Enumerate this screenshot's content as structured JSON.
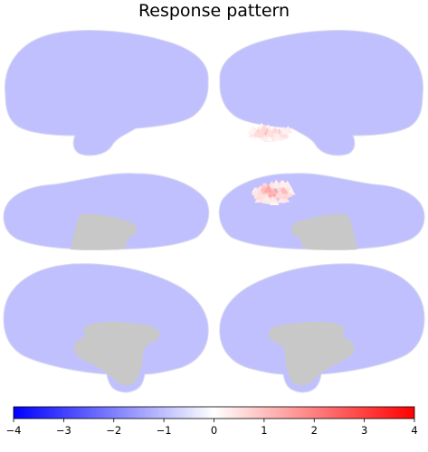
{
  "title": "Response pattern",
  "chart_data": {
    "type": "heatmap",
    "title": "Response pattern",
    "panels": [
      {
        "view": "lateral",
        "hemisphere": "left",
        "orientation": "left",
        "row": 0,
        "col": 0,
        "hotspot": null
      },
      {
        "view": "lateral",
        "hemisphere": "right",
        "orientation": "right",
        "row": 0,
        "col": 1,
        "hotspot": {
          "region": "superior temporal",
          "peak_value": 1.5
        }
      },
      {
        "view": "dorsal",
        "hemisphere": "left",
        "orientation": "left",
        "row": 1,
        "col": 0,
        "hotspot": null
      },
      {
        "view": "dorsal",
        "hemisphere": "right",
        "orientation": "right",
        "row": 1,
        "col": 1,
        "hotspot": {
          "region": "dorsal",
          "peak_value": 2.0
        }
      },
      {
        "view": "medial",
        "hemisphere": "left",
        "orientation": "left",
        "row": 2,
        "col": 0,
        "hotspot": null
      },
      {
        "view": "medial",
        "hemisphere": "right",
        "orientation": "right",
        "row": 2,
        "col": 1,
        "hotspot": null
      }
    ],
    "colorbar": {
      "range": [
        -4,
        4
      ],
      "ticks": [
        "−4",
        "−3",
        "−2",
        "−1",
        "0",
        "1",
        "2",
        "3",
        "4"
      ],
      "colormap": [
        "#0000ff",
        "#ffffff",
        "#ff0000"
      ]
    },
    "colors": {
      "surface": "#c0c0ff",
      "medial_wall": "#c8c8c8"
    }
  }
}
